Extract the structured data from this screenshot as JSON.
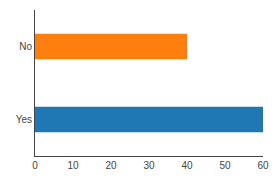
{
  "chart_data": {
    "type": "bar",
    "orientation": "horizontal",
    "categories": [
      "Yes",
      "No"
    ],
    "values": [
      60,
      40
    ],
    "colors": [
      "#1f77b4",
      "#ff7f0e"
    ],
    "xlim": [
      0,
      60
    ],
    "xticks": [
      0,
      10,
      20,
      30,
      40,
      50,
      60
    ],
    "grid": false
  }
}
